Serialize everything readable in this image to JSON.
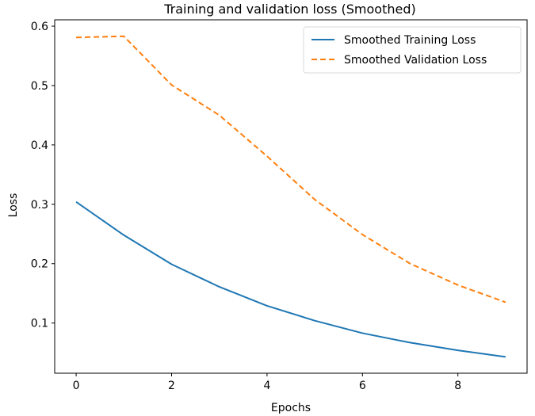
{
  "chart_data": {
    "type": "line",
    "title": "Training and validation loss (Smoothed)",
    "xlabel": "Epochs",
    "ylabel": "Loss",
    "x": [
      0,
      1,
      2,
      3,
      4,
      5,
      6,
      7,
      8,
      9
    ],
    "xticks": [
      0,
      2,
      4,
      6,
      8
    ],
    "xtick_labels": [
      "0",
      "2",
      "4",
      "6",
      "8"
    ],
    "yticks": [
      0.1,
      0.2,
      0.3,
      0.4,
      0.5,
      0.6
    ],
    "ytick_labels": [
      "0.1",
      "0.2",
      "0.3",
      "0.4",
      "0.5",
      "0.6"
    ],
    "xlim": [
      -0.45,
      9.45
    ],
    "ylim": [
      0.0155,
      0.6107
    ],
    "grid": false,
    "legend_position": "upper right",
    "series": [
      {
        "name": "Smoothed Training Loss",
        "color": "#1f77b4",
        "style": "solid",
        "values": [
          0.304,
          0.248,
          0.199,
          0.161,
          0.129,
          0.104,
          0.083,
          0.067,
          0.054,
          0.043
        ]
      },
      {
        "name": "Smoothed Validation Loss",
        "color": "#ff7f0e",
        "style": "dashed",
        "values": [
          0.581,
          0.583,
          0.501,
          0.45,
          0.381,
          0.308,
          0.249,
          0.2,
          0.164,
          0.135
        ]
      }
    ]
  }
}
